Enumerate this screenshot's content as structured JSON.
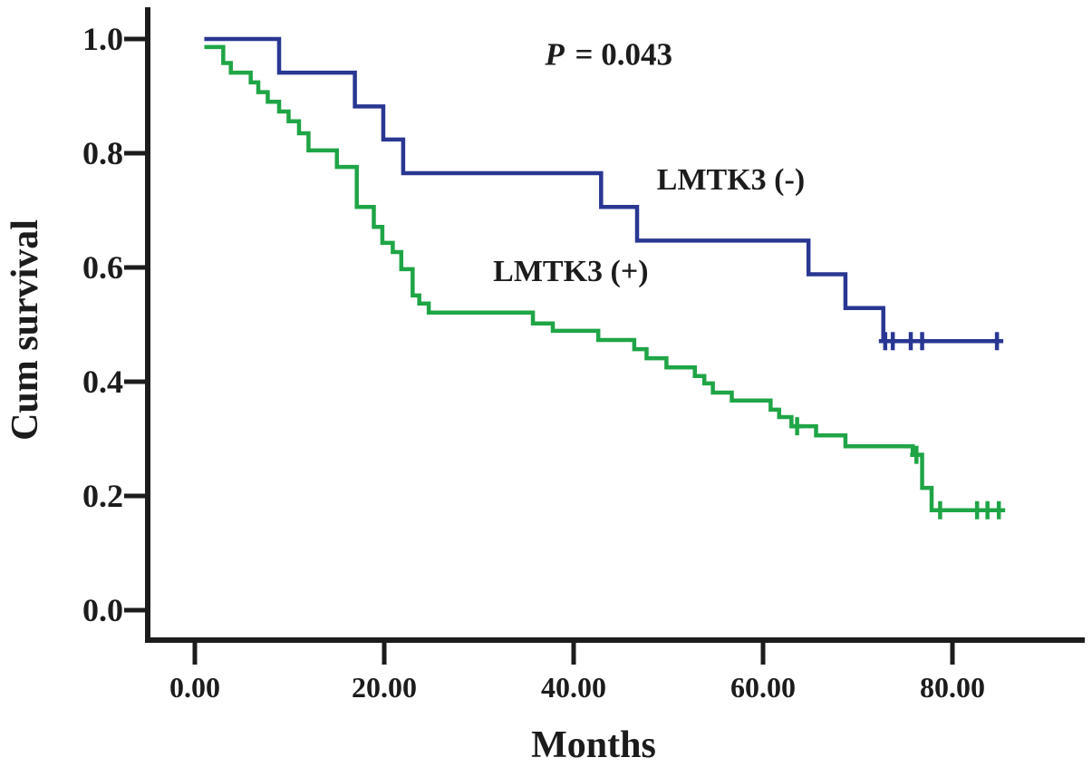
{
  "chart_data": {
    "type": "line",
    "chart_kind": "kaplan-meier-survival-step",
    "title": "",
    "xlabel": "Months",
    "ylabel": "Cum survival",
    "grid": false,
    "legend_position": "inline-labels",
    "p_annotation": {
      "italic_part": "P",
      "rest_part": " = 0.043",
      "full_text": "P = 0.043",
      "x": 43.7,
      "y": 0.973
    },
    "x_axis": {
      "min": -5,
      "max": 94,
      "tick_values": [
        0,
        20,
        40,
        60,
        80
      ],
      "tick_labels": [
        "0.00",
        "20.00",
        "40.00",
        "60.00",
        "80.00"
      ]
    },
    "y_axis": {
      "min": -0.05,
      "max": 1.05,
      "tick_values": [
        1.0,
        0.8,
        0.6,
        0.4,
        0.2,
        0.0
      ],
      "tick_labels": [
        "1.0",
        "0.8",
        "0.6",
        "0.4",
        "0.2",
        "0.0"
      ]
    },
    "axis_color": "#1c1c1c",
    "series": [
      {
        "id": "lmtk3-negative",
        "name": "LMTK3 (-)",
        "color": "#293792",
        "label_anchor": {
          "x": 56.6,
          "y": 0.752
        },
        "start": [
          1,
          1.0
        ],
        "steps": [
          [
            8.9,
            0.941
          ],
          [
            16.9,
            0.882
          ],
          [
            19.9,
            0.824
          ],
          [
            22.0,
            0.765
          ],
          [
            42.9,
            0.706
          ],
          [
            46.7,
            0.647
          ],
          [
            64.8,
            0.588
          ],
          [
            68.7,
            0.529
          ],
          [
            72.7,
            0.471
          ]
        ],
        "end_month": 85.3,
        "censors": [
          [
            72.9,
            0.471
          ],
          [
            73.7,
            0.471
          ],
          [
            75.6,
            0.471
          ],
          [
            76.8,
            0.471
          ],
          [
            84.7,
            0.471
          ]
        ]
      },
      {
        "id": "lmtk3-positive",
        "name": "LMTK3 (+)",
        "color": "#1fa546",
        "label_anchor": {
          "x": 39.7,
          "y": 0.592
        },
        "start": [
          1,
          0.986
        ],
        "steps": [
          [
            3.0,
            0.958
          ],
          [
            3.8,
            0.941
          ],
          [
            5.9,
            0.924
          ],
          [
            6.7,
            0.907
          ],
          [
            7.7,
            0.89
          ],
          [
            8.9,
            0.873
          ],
          [
            9.9,
            0.856
          ],
          [
            11.0,
            0.835
          ],
          [
            12.0,
            0.805
          ],
          [
            15.0,
            0.776
          ],
          [
            17.1,
            0.706
          ],
          [
            18.9,
            0.671
          ],
          [
            19.8,
            0.643
          ],
          [
            20.9,
            0.627
          ],
          [
            21.8,
            0.597
          ],
          [
            23.0,
            0.551
          ],
          [
            23.7,
            0.537
          ],
          [
            24.7,
            0.521
          ],
          [
            35.7,
            0.502
          ],
          [
            37.8,
            0.489
          ],
          [
            42.6,
            0.473
          ],
          [
            46.4,
            0.457
          ],
          [
            47.7,
            0.441
          ],
          [
            49.8,
            0.425
          ],
          [
            52.8,
            0.41
          ],
          [
            53.8,
            0.397
          ],
          [
            54.7,
            0.381
          ],
          [
            56.7,
            0.367
          ],
          [
            60.8,
            0.351
          ],
          [
            61.7,
            0.338
          ],
          [
            63.0,
            0.322
          ],
          [
            65.6,
            0.306
          ],
          [
            68.7,
            0.287
          ],
          [
            75.8,
            0.272
          ],
          [
            76.8,
            0.214
          ],
          [
            77.8,
            0.175
          ]
        ],
        "end_month": 85.5,
        "censors": [
          [
            63.6,
            0.322
          ],
          [
            76.2,
            0.272
          ],
          [
            78.7,
            0.175
          ],
          [
            82.6,
            0.175
          ],
          [
            83.7,
            0.175
          ],
          [
            84.9,
            0.175
          ]
        ]
      }
    ]
  }
}
